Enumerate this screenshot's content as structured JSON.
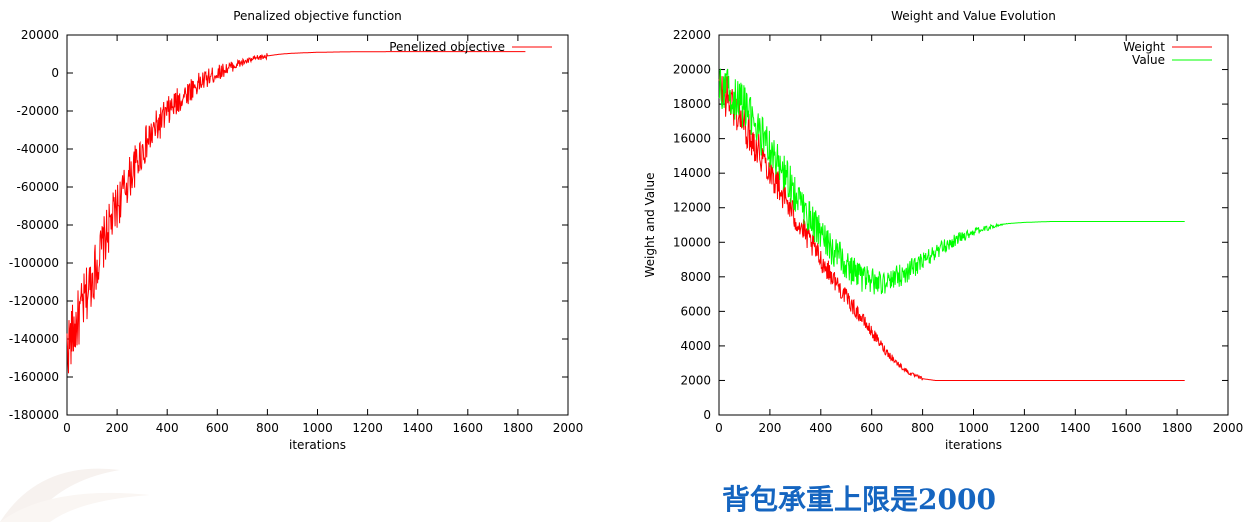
{
  "caption": "背包承重上限是2000",
  "chart_data": [
    {
      "type": "line",
      "title": "Penalized objective function",
      "xlabel": "iterations",
      "ylabel": "",
      "xlim": [
        0,
        2000
      ],
      "ylim": [
        -180000,
        20000
      ],
      "xticks": [
        0,
        200,
        400,
        600,
        800,
        1000,
        1200,
        1400,
        1600,
        1800,
        2000
      ],
      "yticks": [
        -180000,
        -160000,
        -140000,
        -120000,
        -100000,
        -80000,
        -60000,
        -40000,
        -20000,
        0,
        20000
      ],
      "legend_position": "top-right",
      "grid": false,
      "series": [
        {
          "name": "Penelized objective",
          "color": "#ff0000",
          "x": [
            0,
            50,
            100,
            150,
            200,
            250,
            300,
            350,
            400,
            450,
            500,
            550,
            600,
            650,
            700,
            750,
            800,
            850,
            900,
            1000,
            1100,
            1200,
            1300,
            1400,
            1500,
            1600,
            1700,
            1830
          ],
          "y": [
            -145000,
            -128000,
            -108000,
            -88000,
            -70000,
            -55000,
            -41000,
            -30000,
            -21000,
            -14000,
            -8000,
            -3500,
            0,
            3000,
            5500,
            7500,
            9000,
            9900,
            10400,
            10900,
            11100,
            11200,
            11250,
            11250,
            11250,
            11250,
            11250,
            11250
          ]
        }
      ]
    },
    {
      "type": "line",
      "title": "Weight and Value Evolution",
      "xlabel": "iterations",
      "ylabel": "Weight and Value",
      "xlim": [
        0,
        2000
      ],
      "ylim": [
        0,
        22000
      ],
      "xticks": [
        0,
        200,
        400,
        600,
        800,
        1000,
        1200,
        1400,
        1600,
        1800,
        2000
      ],
      "yticks": [
        0,
        2000,
        4000,
        6000,
        8000,
        10000,
        12000,
        14000,
        16000,
        18000,
        20000,
        22000
      ],
      "legend_position": "top-right",
      "grid": false,
      "series": [
        {
          "name": "Weight",
          "color": "#ff0000",
          "x": [
            0,
            50,
            100,
            150,
            200,
            250,
            300,
            350,
            400,
            450,
            500,
            550,
            600,
            650,
            700,
            750,
            800,
            850,
            900,
            1000,
            1100,
            1200,
            1400,
            1600,
            1830
          ],
          "y": [
            19000,
            18000,
            16800,
            15500,
            14200,
            12800,
            11400,
            10200,
            9000,
            7900,
            6800,
            5800,
            4800,
            3800,
            3000,
            2400,
            2100,
            2000,
            2000,
            2000,
            2000,
            2000,
            2000,
            2000,
            2000
          ]
        },
        {
          "name": "Value",
          "color": "#00ff00",
          "x": [
            0,
            50,
            100,
            150,
            200,
            250,
            300,
            350,
            400,
            450,
            500,
            550,
            600,
            650,
            700,
            750,
            800,
            850,
            900,
            950,
            1000,
            1050,
            1100,
            1150,
            1200,
            1300,
            1400,
            1600,
            1830
          ],
          "y": [
            19000,
            18600,
            17800,
            16600,
            15400,
            14100,
            12800,
            11600,
            10500,
            9500,
            8700,
            8000,
            7700,
            7700,
            8000,
            8400,
            8900,
            9400,
            9900,
            10300,
            10600,
            10800,
            11000,
            11100,
            11150,
            11200,
            11200,
            11200,
            11200
          ]
        }
      ]
    }
  ]
}
